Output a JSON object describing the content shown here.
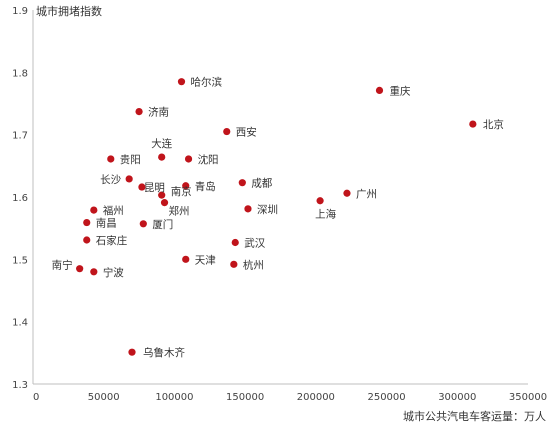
{
  "chart_data": {
    "type": "scatter",
    "ylabel": "城市拥堵指数",
    "xlabel": "城市公共汽电车客运量：万人",
    "xlim": [
      0,
      350000
    ],
    "ylim": [
      1.3,
      1.9
    ],
    "x_ticks": [
      "0",
      "50000",
      "100000",
      "150000",
      "200000",
      "250000",
      "300000",
      "350000"
    ],
    "y_ticks": [
      "1.3",
      "1.4",
      "1.5",
      "1.6",
      "1.7",
      "1.8",
      "1.9"
    ],
    "grid": false,
    "marker_color": "#c0141b",
    "points": [
      {
        "label": "北京",
        "x": 311000,
        "y": 1.717
      },
      {
        "label": "重庆",
        "x": 245000,
        "y": 1.771
      },
      {
        "label": "哈尔滨",
        "x": 105000,
        "y": 1.785
      },
      {
        "label": "济南",
        "x": 75000,
        "y": 1.737
      },
      {
        "label": "西安",
        "x": 137000,
        "y": 1.705
      },
      {
        "label": "大连",
        "x": 91000,
        "y": 1.664
      },
      {
        "label": "贵阳",
        "x": 55000,
        "y": 1.661
      },
      {
        "label": "沈阳",
        "x": 110000,
        "y": 1.661
      },
      {
        "label": "长沙",
        "x": 68000,
        "y": 1.629
      },
      {
        "label": "昆明",
        "x": 77000,
        "y": 1.616
      },
      {
        "label": "青岛",
        "x": 108000,
        "y": 1.618
      },
      {
        "label": "成都",
        "x": 148000,
        "y": 1.623
      },
      {
        "label": "广州",
        "x": 222000,
        "y": 1.606
      },
      {
        "label": "上海",
        "x": 203000,
        "y": 1.594
      },
      {
        "label": "南京",
        "x": 91000,
        "y": 1.603
      },
      {
        "label": "郑州",
        "x": 93000,
        "y": 1.591
      },
      {
        "label": "深圳",
        "x": 152000,
        "y": 1.581
      },
      {
        "label": "福州",
        "x": 43000,
        "y": 1.579
      },
      {
        "label": "南昌",
        "x": 38000,
        "y": 1.559
      },
      {
        "label": "厦门",
        "x": 78000,
        "y": 1.557
      },
      {
        "label": "石家庄",
        "x": 38000,
        "y": 1.531
      },
      {
        "label": "武汉",
        "x": 143000,
        "y": 1.527
      },
      {
        "label": "天津",
        "x": 108000,
        "y": 1.5
      },
      {
        "label": "杭州",
        "x": 142000,
        "y": 1.492
      },
      {
        "label": "南宁",
        "x": 33000,
        "y": 1.485
      },
      {
        "label": "宁波",
        "x": 43000,
        "y": 1.48
      },
      {
        "label": "乌鲁木齐",
        "x": 70000,
        "y": 1.351
      }
    ]
  }
}
